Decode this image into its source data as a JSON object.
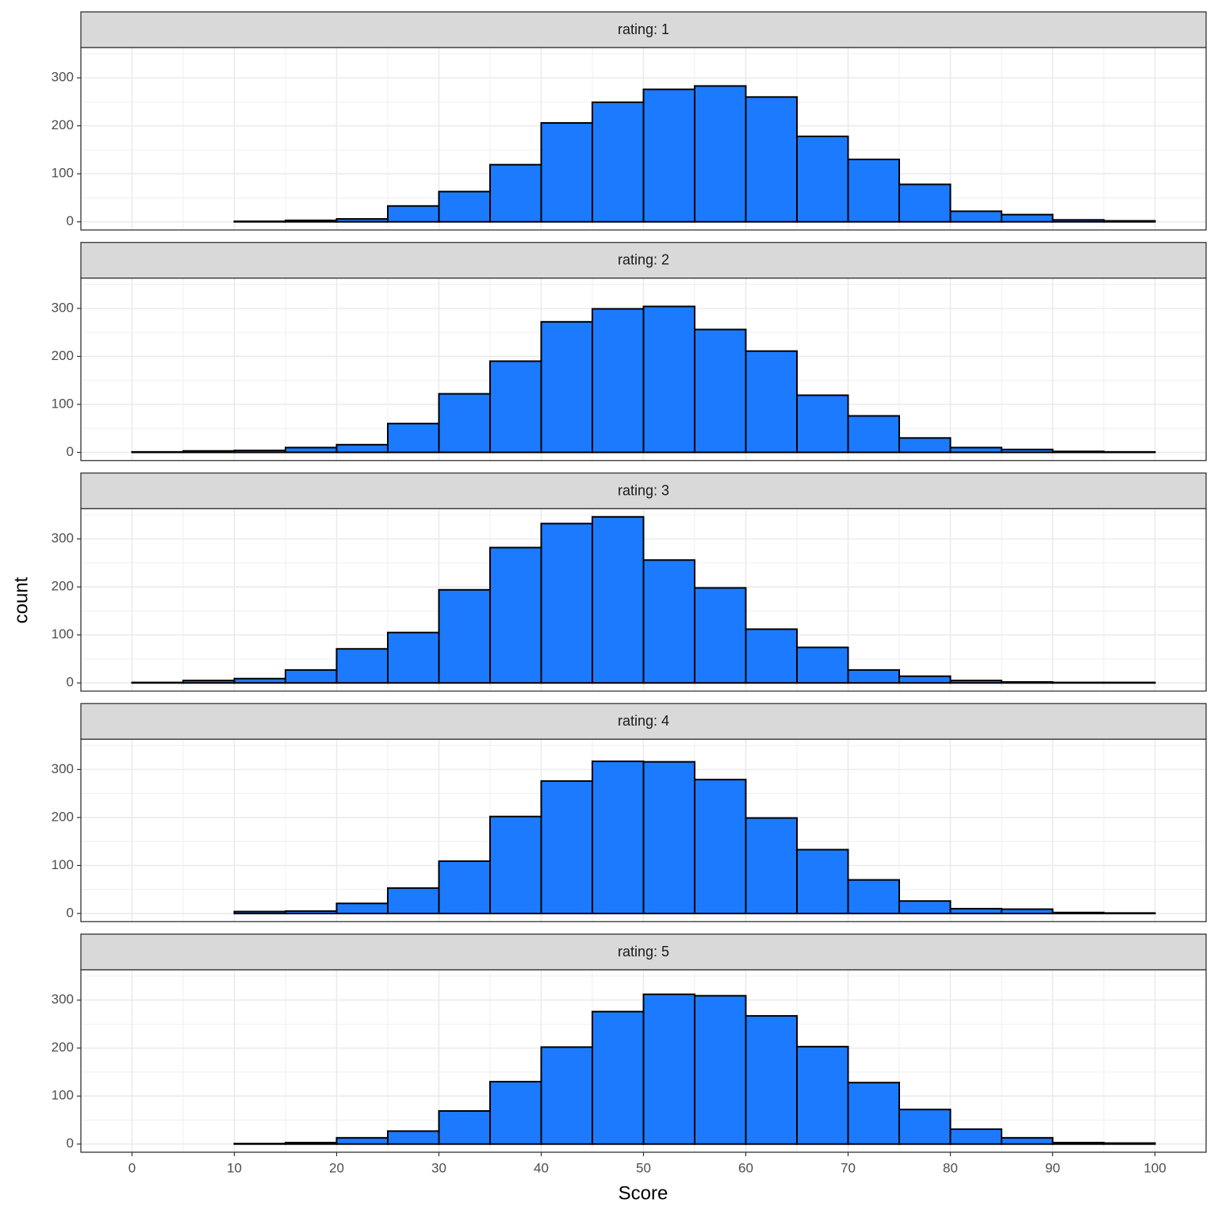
{
  "chart_data": {
    "type": "histogram",
    "xlabel": "Score",
    "ylabel": "count",
    "color": "#1c7aff",
    "grid": true,
    "bins": [
      0,
      5,
      10,
      15,
      20,
      25,
      30,
      35,
      40,
      45,
      50,
      55,
      60,
      65,
      70,
      75,
      80,
      85,
      90,
      95,
      100
    ],
    "xlim": [
      -5,
      105
    ],
    "xticks": [
      0,
      10,
      20,
      30,
      40,
      50,
      60,
      70,
      80,
      90,
      100
    ],
    "ylim": [
      -17,
      363
    ],
    "yticks": [
      0,
      100,
      200,
      300
    ],
    "facets": [
      {
        "title": "rating: 1",
        "values": [
          0,
          0,
          1,
          3,
          6,
          33,
          63,
          119,
          206,
          249,
          276,
          283,
          260,
          178,
          130,
          78,
          22,
          15,
          4,
          2
        ]
      },
      {
        "title": "rating: 2",
        "values": [
          1,
          3,
          4,
          10,
          16,
          60,
          122,
          190,
          272,
          299,
          304,
          256,
          211,
          119,
          76,
          30,
          10,
          6,
          2,
          1
        ]
      },
      {
        "title": "rating: 3",
        "values": [
          1,
          5,
          9,
          27,
          71,
          105,
          194,
          282,
          332,
          346,
          256,
          198,
          112,
          74,
          27,
          14,
          5,
          2,
          1,
          1
        ]
      },
      {
        "title": "rating: 4",
        "values": [
          0,
          0,
          4,
          5,
          21,
          53,
          109,
          202,
          276,
          317,
          316,
          279,
          199,
          133,
          70,
          26,
          10,
          9,
          2,
          1
        ]
      },
      {
        "title": "rating: 5",
        "values": [
          0,
          0,
          1,
          3,
          13,
          27,
          69,
          130,
          202,
          276,
          312,
          309,
          267,
          203,
          128,
          72,
          31,
          13,
          3,
          2
        ]
      }
    ]
  }
}
